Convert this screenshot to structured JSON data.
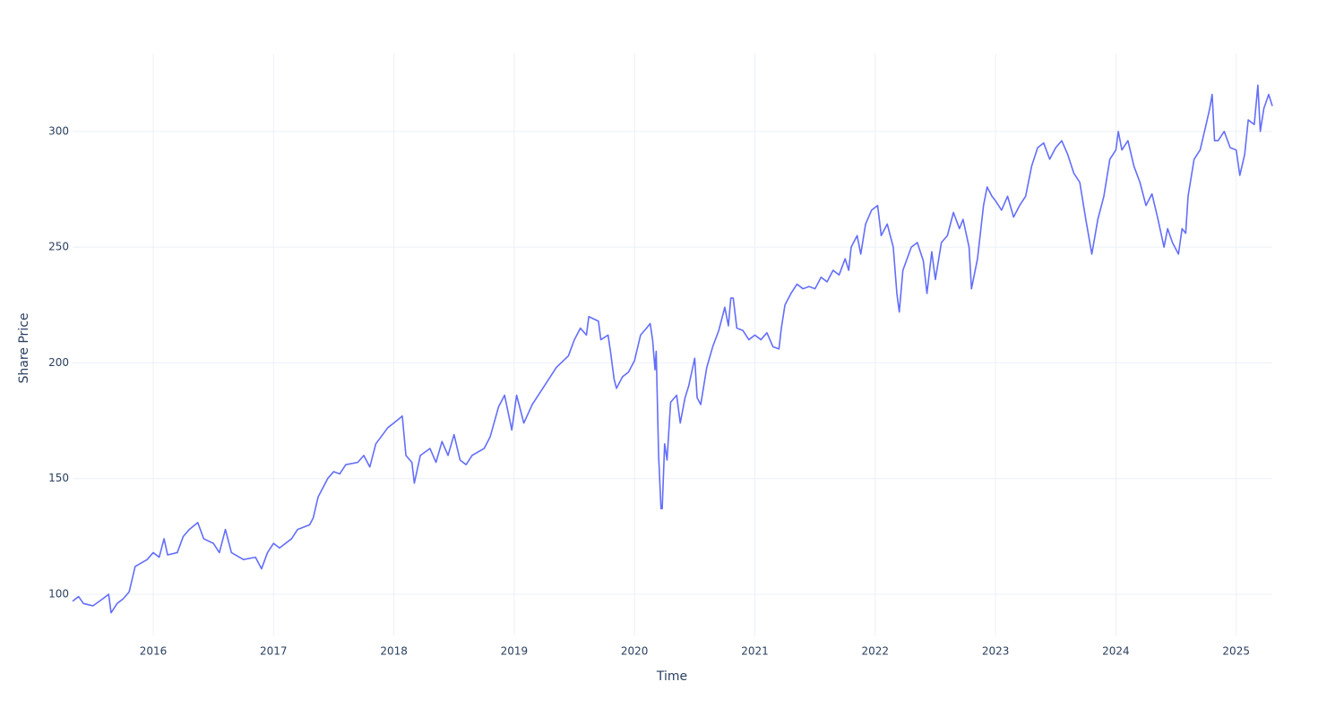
{
  "chart_data": {
    "type": "line",
    "x_label": "Time",
    "y_label": "Share Price",
    "color": "#636efa",
    "grid": true,
    "xlim": [
      2015.33,
      2025.3
    ],
    "ylim": [
      82.2,
      333.6
    ],
    "xticks": [
      2016,
      2017,
      2018,
      2019,
      2020,
      2021,
      2022,
      2023,
      2024,
      2025
    ],
    "yticks": [
      100,
      150,
      200,
      250,
      300
    ],
    "x": [
      2015.33,
      2015.38,
      2015.42,
      2015.5,
      2015.58,
      2015.63,
      2015.65,
      2015.7,
      2015.75,
      2015.8,
      2015.85,
      2015.95,
      2016.0,
      2016.05,
      2016.09,
      2016.12,
      2016.2,
      2016.25,
      2016.3,
      2016.37,
      2016.42,
      2016.5,
      2016.55,
      2016.6,
      2016.65,
      2016.75,
      2016.85,
      2016.9,
      2016.95,
      2017.0,
      2017.05,
      2017.15,
      2017.2,
      2017.3,
      2017.33,
      2017.37,
      2017.45,
      2017.5,
      2017.55,
      2017.6,
      2017.7,
      2017.75,
      2017.8,
      2017.85,
      2017.95,
      2018.0,
      2018.07,
      2018.1,
      2018.15,
      2018.17,
      2018.22,
      2018.3,
      2018.35,
      2018.4,
      2018.45,
      2018.5,
      2018.55,
      2018.6,
      2018.65,
      2018.75,
      2018.8,
      2018.87,
      2018.92,
      2018.98,
      2019.02,
      2019.08,
      2019.15,
      2019.25,
      2019.35,
      2019.45,
      2019.5,
      2019.55,
      2019.6,
      2019.62,
      2019.7,
      2019.72,
      2019.78,
      2019.8,
      2019.83,
      2019.85,
      2019.9,
      2019.95,
      2020.0,
      2020.05,
      2020.1,
      2020.13,
      2020.15,
      2020.17,
      2020.18,
      2020.2,
      2020.22,
      2020.23,
      2020.25,
      2020.27,
      2020.3,
      2020.35,
      2020.38,
      2020.42,
      2020.45,
      2020.5,
      2020.52,
      2020.55,
      2020.6,
      2020.65,
      2020.7,
      2020.75,
      2020.78,
      2020.8,
      2020.82,
      2020.85,
      2020.9,
      2020.95,
      2021.0,
      2021.05,
      2021.1,
      2021.15,
      2021.2,
      2021.22,
      2021.25,
      2021.3,
      2021.35,
      2021.4,
      2021.45,
      2021.5,
      2021.55,
      2021.6,
      2021.65,
      2021.7,
      2021.75,
      2021.78,
      2021.8,
      2021.85,
      2021.88,
      2021.92,
      2021.97,
      2022.02,
      2022.05,
      2022.1,
      2022.15,
      2022.18,
      2022.2,
      2022.23,
      2022.3,
      2022.35,
      2022.4,
      2022.43,
      2022.47,
      2022.5,
      2022.55,
      2022.6,
      2022.65,
      2022.7,
      2022.73,
      2022.78,
      2022.8,
      2022.85,
      2022.9,
      2022.93,
      2022.97,
      2023.0,
      2023.05,
      2023.1,
      2023.15,
      2023.2,
      2023.25,
      2023.3,
      2023.35,
      2023.4,
      2023.45,
      2023.5,
      2023.55,
      2023.6,
      2023.65,
      2023.7,
      2023.75,
      2023.8,
      2023.85,
      2023.9,
      2023.95,
      2024.0,
      2024.02,
      2024.05,
      2024.1,
      2024.15,
      2024.2,
      2024.25,
      2024.3,
      2024.35,
      2024.4,
      2024.43,
      2024.47,
      2024.52,
      2024.55,
      2024.58,
      2024.6,
      2024.65,
      2024.7,
      2024.75,
      2024.78,
      2024.8,
      2024.82,
      2024.85,
      2024.9,
      2024.95,
      2025.0,
      2025.03,
      2025.07,
      2025.1,
      2025.15,
      2025.18,
      2025.2,
      2025.23,
      2025.27,
      2025.3
    ],
    "values": [
      97,
      99,
      96,
      95,
      98,
      100,
      92,
      96,
      98,
      101,
      112,
      115,
      118,
      116,
      124,
      117,
      118,
      125,
      128,
      131,
      124,
      122,
      118,
      128,
      118,
      115,
      116,
      111,
      118,
      122,
      120,
      124,
      128,
      130,
      133,
      142,
      150,
      153,
      152,
      156,
      157,
      160,
      155,
      165,
      172,
      174,
      177,
      160,
      157,
      148,
      160,
      163,
      157,
      166,
      160,
      169,
      158,
      156,
      160,
      163,
      168,
      181,
      186,
      171,
      186,
      174,
      182,
      190,
      198,
      203,
      210,
      215,
      212,
      220,
      218,
      210,
      212,
      205,
      193,
      189,
      194,
      196,
      201,
      212,
      215,
      217,
      210,
      197,
      205,
      160,
      137,
      137,
      165,
      158,
      183,
      186,
      174,
      185,
      190,
      202,
      185,
      182,
      198,
      207,
      214,
      224,
      216,
      228,
      228,
      215,
      214,
      210,
      212,
      210,
      213,
      207,
      206,
      215,
      225,
      230,
      234,
      232,
      233,
      232,
      237,
      235,
      240,
      238,
      245,
      240,
      250,
      255,
      247,
      260,
      266,
      268,
      255,
      260,
      250,
      230,
      222,
      240,
      250,
      252,
      244,
      230,
      248,
      236,
      252,
      255,
      265,
      258,
      262,
      250,
      232,
      245,
      268,
      276,
      272,
      270,
      266,
      272,
      263,
      268,
      272,
      285,
      293,
      295,
      288,
      293,
      296,
      290,
      282,
      278,
      262,
      247,
      262,
      272,
      288,
      292,
      300,
      292,
      296,
      285,
      278,
      268,
      273,
      262,
      250,
      258,
      252,
      247,
      258,
      256,
      272,
      288,
      292,
      303,
      310,
      316,
      296,
      296,
      300,
      293,
      292,
      281,
      290,
      305,
      303,
      320,
      300,
      310,
      316,
      311
    ]
  }
}
